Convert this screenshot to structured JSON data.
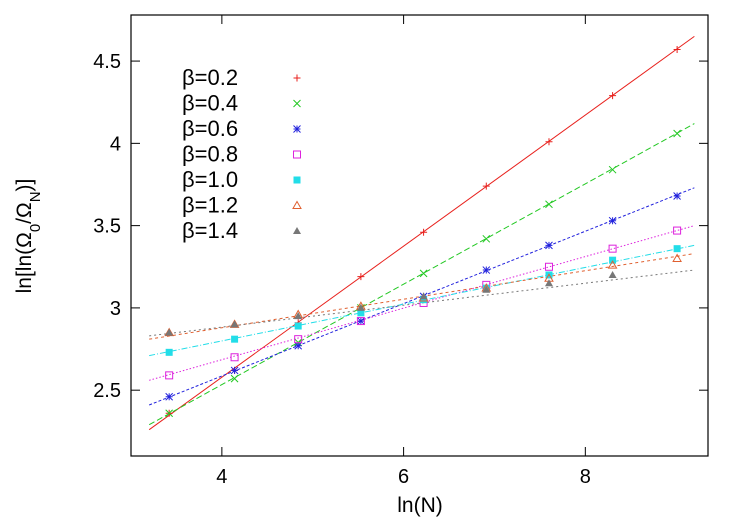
{
  "chart_data": {
    "type": "scatter",
    "xlabel": "ln(N)",
    "ylabel_html": "ln[ln(Ω<tspan baseline-shift=\"sub\" font-size=\"15\">0</tspan>/Ω<tspan baseline-shift=\"sub\" font-size=\"15\">N</tspan>)]",
    "ylabel": "ln[ln(Ω0/ΩN)]",
    "xlim": [
      3.0,
      9.35
    ],
    "ylim": [
      2.1,
      4.78
    ],
    "xticks": [
      4,
      6,
      8
    ],
    "yticks": [
      2.5,
      3,
      3.5,
      4,
      4.5
    ],
    "xtick_labels": [
      "4",
      "6",
      "8"
    ],
    "ytick_labels": [
      "2.5",
      "3",
      "3.5",
      "4",
      "4.5"
    ],
    "grid": false,
    "legend_position": "top-left",
    "x": [
      3.42,
      4.14,
      4.84,
      5.53,
      6.22,
      6.91,
      7.6,
      8.3,
      9.01
    ],
    "series": [
      {
        "name": "β=0.2",
        "color": "#e8201c",
        "marker": "plus",
        "dash": "",
        "values": [
          2.36,
          2.62,
          2.91,
          3.19,
          3.46,
          3.74,
          4.01,
          4.29,
          4.57
        ],
        "fit": [
          [
            3.2,
            2.26
          ],
          [
            9.2,
            4.65
          ]
        ]
      },
      {
        "name": "β=0.4",
        "color": "#22c822",
        "marker": "cross",
        "dash": "6,3",
        "values": [
          2.36,
          2.57,
          2.79,
          3.0,
          3.21,
          3.42,
          3.63,
          3.84,
          4.06
        ],
        "fit": [
          [
            3.2,
            2.29
          ],
          [
            9.2,
            4.12
          ]
        ]
      },
      {
        "name": "β=0.6",
        "color": "#2222dd",
        "marker": "star",
        "dash": "3,2",
        "values": [
          2.46,
          2.62,
          2.77,
          2.92,
          3.07,
          3.23,
          3.38,
          3.53,
          3.68
        ],
        "fit": [
          [
            3.2,
            2.41
          ],
          [
            9.2,
            3.73
          ]
        ]
      },
      {
        "name": "β=0.8",
        "color": "#dd22dd",
        "marker": "square-open",
        "dash": "1.5,2",
        "values": [
          2.59,
          2.7,
          2.81,
          2.92,
          3.03,
          3.14,
          3.25,
          3.36,
          3.47
        ],
        "fit": [
          [
            3.2,
            2.56
          ],
          [
            9.2,
            3.5
          ]
        ]
      },
      {
        "name": "β=1.0",
        "color": "#22dde8",
        "marker": "square-filled",
        "dash": "6,2,1,2",
        "values": [
          2.73,
          2.81,
          2.89,
          2.97,
          3.05,
          3.12,
          3.2,
          3.29,
          3.36
        ],
        "fit": [
          [
            3.2,
            2.71
          ],
          [
            9.2,
            3.38
          ]
        ]
      },
      {
        "name": "β=1.2",
        "color": "#e06030",
        "marker": "triangle-open",
        "dash": "3,3",
        "values": [
          2.85,
          2.9,
          2.96,
          3.01,
          3.06,
          3.12,
          3.18,
          3.26,
          3.3
        ],
        "fit": [
          [
            3.2,
            2.81
          ],
          [
            9.2,
            3.33
          ]
        ]
      },
      {
        "name": "β=1.4",
        "color": "#777777",
        "marker": "triangle-filled",
        "dash": "2,3",
        "values": [
          2.85,
          2.9,
          2.95,
          3.0,
          3.07,
          3.11,
          3.15,
          3.2,
          null
        ],
        "fit": [
          [
            3.2,
            2.83
          ],
          [
            9.2,
            3.23
          ]
        ]
      }
    ]
  }
}
